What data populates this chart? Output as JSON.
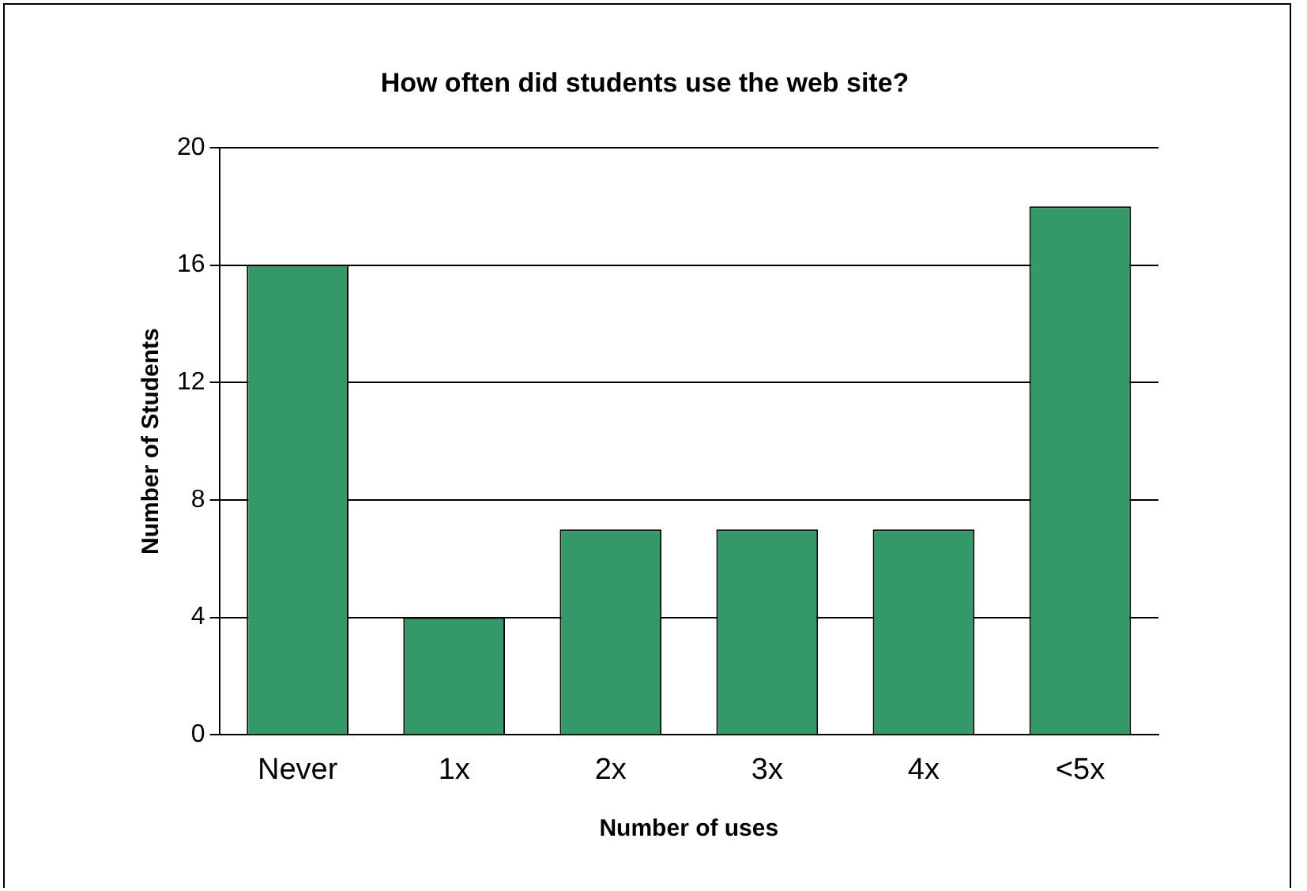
{
  "chart_data": {
    "type": "bar",
    "title": "How often did students use the web site?",
    "xlabel": "Number of uses",
    "ylabel": "Number of Students",
    "categories": [
      "Never",
      "1x",
      "2x",
      "3x",
      "4x",
      "<5x"
    ],
    "values": [
      16,
      4,
      7,
      7,
      7,
      18
    ],
    "color": "#339966",
    "ylim": [
      0,
      20
    ],
    "yticks": [
      0,
      4,
      8,
      12,
      16,
      20
    ],
    "grid": "y",
    "legend": false
  }
}
